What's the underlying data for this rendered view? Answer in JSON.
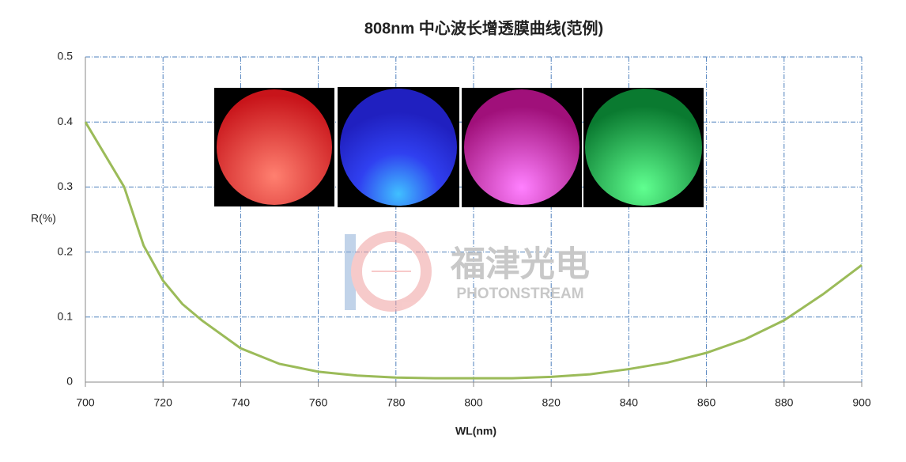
{
  "chart_data": {
    "type": "line",
    "title": "808nm 中心波长增透膜曲线(范例)",
    "x_label": "WL(nm)",
    "y_label": "R(%)",
    "x": [
      700,
      705,
      710,
      715,
      720,
      725,
      730,
      740,
      750,
      760,
      770,
      780,
      790,
      800,
      810,
      820,
      830,
      840,
      850,
      860,
      870,
      880,
      890,
      900
    ],
    "series": [
      {
        "name": "R",
        "color": "#9bbb59",
        "values": [
          0.4,
          0.35,
          0.3,
          0.21,
          0.156,
          0.12,
          0.095,
          0.052,
          0.028,
          0.016,
          0.01,
          0.007,
          0.006,
          0.006,
          0.006,
          0.008,
          0.012,
          0.02,
          0.03,
          0.045,
          0.066,
          0.095,
          0.135,
          0.18
        ]
      }
    ],
    "xlim": [
      700,
      900
    ],
    "xticks": [
      700,
      720,
      740,
      760,
      780,
      800,
      820,
      840,
      860,
      880,
      900
    ],
    "ylim": [
      0,
      0.5
    ],
    "yticks": [
      0,
      0.1,
      0.2,
      0.3,
      0.4,
      0.5
    ],
    "grid": true
  },
  "watermark": {
    "name": "福津光电",
    "brand": "PHOTONSTREAM"
  }
}
